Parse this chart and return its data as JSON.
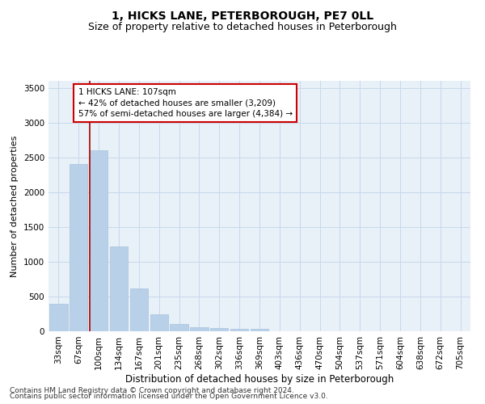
{
  "title": "1, HICKS LANE, PETERBOROUGH, PE7 0LL",
  "subtitle": "Size of property relative to detached houses in Peterborough",
  "xlabel": "Distribution of detached houses by size in Peterborough",
  "ylabel": "Number of detached properties",
  "footnote1": "Contains HM Land Registry data © Crown copyright and database right 2024.",
  "footnote2": "Contains public sector information licensed under the Open Government Licence v3.0.",
  "categories": [
    "33sqm",
    "67sqm",
    "100sqm",
    "134sqm",
    "167sqm",
    "201sqm",
    "235sqm",
    "268sqm",
    "302sqm",
    "336sqm",
    "369sqm",
    "403sqm",
    "436sqm",
    "470sqm",
    "504sqm",
    "537sqm",
    "571sqm",
    "604sqm",
    "638sqm",
    "672sqm",
    "705sqm"
  ],
  "values": [
    390,
    2400,
    2600,
    1220,
    620,
    245,
    105,
    55,
    45,
    40,
    35,
    0,
    0,
    0,
    0,
    0,
    0,
    0,
    0,
    0,
    0
  ],
  "bar_color": "#b8d0e8",
  "bar_edge_color": "#a0bcd8",
  "grid_color": "#c8d8eb",
  "bg_color": "#e8f0f8",
  "property_label": "1 HICKS LANE: 107sqm",
  "annotation_line1": "← 42% of detached houses are smaller (3,209)",
  "annotation_line2": "57% of semi-detached houses are larger (4,384) →",
  "annotation_box_facecolor": "#ffffff",
  "annotation_box_edgecolor": "#cc0000",
  "property_line_color": "#aa0000",
  "ylim": [
    0,
    3600
  ],
  "yticks": [
    0,
    500,
    1000,
    1500,
    2000,
    2500,
    3000,
    3500
  ],
  "title_fontsize": 10,
  "subtitle_fontsize": 9,
  "xlabel_fontsize": 8.5,
  "ylabel_fontsize": 8,
  "tick_fontsize": 7.5,
  "annotation_fontsize": 7.5,
  "footnote_fontsize": 6.5,
  "prop_line_xindex": 2.5
}
